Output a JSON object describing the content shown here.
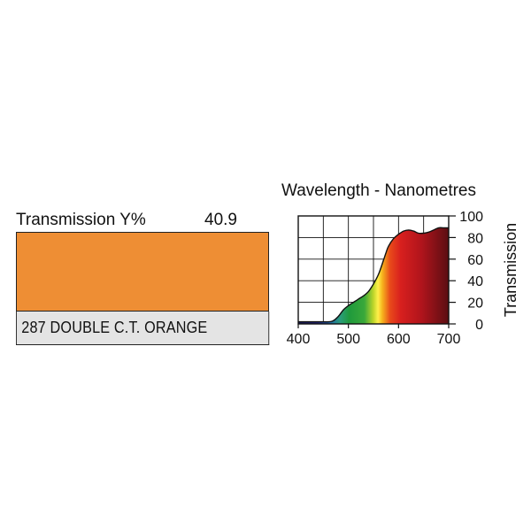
{
  "swatch": {
    "transmission_label": "Transmission Y%",
    "transmission_value": "40.9",
    "color": "#ee8e34",
    "name": "287 DOUBLE C.T. ORANGE",
    "name_background": "#e4e4e4"
  },
  "chart_data": {
    "type": "area",
    "title": "Wavelength - Nanometres",
    "xlabel": "",
    "ylabel": "Transmission",
    "xlim": [
      400,
      700
    ],
    "ylim": [
      0,
      100
    ],
    "x_ticks": [
      "400",
      "500",
      "600",
      "700"
    ],
    "y_ticks": [
      "0",
      "20",
      "40",
      "60",
      "80",
      "100"
    ],
    "grid": true,
    "fill": "visible spectrum colors under curve",
    "series": [
      {
        "x": [
          400,
          450,
          460,
          470,
          480,
          490,
          500,
          510,
          520,
          530,
          540,
          550,
          560,
          570,
          575,
          580,
          590,
          600,
          610,
          620,
          630,
          640,
          650,
          660,
          670,
          680,
          690,
          700
        ],
        "values": [
          2,
          2,
          2,
          3,
          7,
          13,
          17,
          20,
          23,
          26,
          30,
          37,
          46,
          59,
          66,
          72,
          79,
          83,
          86,
          87,
          86,
          84,
          84,
          85,
          87,
          89,
          89,
          89
        ]
      }
    ]
  }
}
